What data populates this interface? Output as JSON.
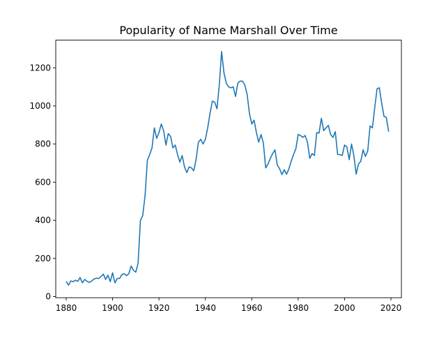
{
  "chart_data": {
    "type": "line",
    "title": "Popularity of Name Marshall Over Time",
    "xlabel": "",
    "ylabel": "",
    "xlim": [
      1875.5,
      2024.5
    ],
    "ylim": [
      -6,
      1345
    ],
    "x_ticks": [
      1880,
      1900,
      1920,
      1940,
      1960,
      1980,
      2000,
      2020
    ],
    "y_ticks": [
      0,
      200,
      400,
      600,
      800,
      1000,
      1200
    ],
    "grid": false,
    "legend": "none",
    "line_color": "#1f77b4",
    "series": [
      {
        "x": [
          1880,
          1881,
          1882,
          1883,
          1884,
          1885,
          1886,
          1887,
          1888,
          1889,
          1890,
          1891,
          1892,
          1893,
          1894,
          1895,
          1896,
          1897,
          1898,
          1899,
          1900,
          1901,
          1902,
          1903,
          1904,
          1905,
          1906,
          1907,
          1908,
          1909,
          1910,
          1911,
          1912,
          1913,
          1914,
          1915,
          1916,
          1917,
          1918,
          1919,
          1920,
          1921,
          1922,
          1923,
          1924,
          1925,
          1926,
          1927,
          1928,
          1929,
          1930,
          1931,
          1932,
          1933,
          1934,
          1935,
          1936,
          1937,
          1938,
          1939,
          1940,
          1941,
          1942,
          1943,
          1944,
          1945,
          1946,
          1947,
          1948,
          1949,
          1950,
          1951,
          1952,
          1953,
          1954,
          1955,
          1956,
          1957,
          1958,
          1959,
          1960,
          1961,
          1962,
          1963,
          1964,
          1965,
          1966,
          1967,
          1968,
          1969,
          1970,
          1971,
          1972,
          1973,
          1974,
          1975,
          1976,
          1977,
          1978,
          1979,
          1980,
          1981,
          1982,
          1983,
          1984,
          1985,
          1986,
          1987,
          1988,
          1989,
          1990,
          1991,
          1992,
          1993,
          1994,
          1995,
          1996,
          1997,
          1998,
          1999,
          2000,
          2001,
          2002,
          2003,
          2004,
          2005,
          2006,
          2007,
          2008,
          2009,
          2010,
          2011,
          2012,
          2013,
          2014,
          2015,
          2016,
          2017,
          2018,
          2019
        ],
        "y": [
          80,
          60,
          82,
          78,
          86,
          80,
          100,
          72,
          90,
          80,
          74,
          82,
          92,
          96,
          95,
          105,
          118,
          90,
          112,
          78,
          125,
          72,
          95,
          95,
          115,
          120,
          110,
          120,
          160,
          138,
          128,
          175,
          400,
          425,
          530,
          715,
          745,
          780,
          885,
          830,
          860,
          905,
          870,
          795,
          855,
          840,
          780,
          795,
          745,
          705,
          740,
          680,
          650,
          680,
          675,
          660,
          720,
          810,
          825,
          800,
          825,
          885,
          960,
          1025,
          1020,
          985,
          1110,
          1285,
          1175,
          1120,
          1100,
          1095,
          1100,
          1050,
          1120,
          1130,
          1130,
          1110,
          1060,
          960,
          905,
          925,
          860,
          810,
          850,
          805,
          675,
          695,
          725,
          750,
          770,
          690,
          670,
          640,
          665,
          642,
          670,
          710,
          745,
          775,
          850,
          845,
          835,
          845,
          810,
          725,
          750,
          740,
          860,
          858,
          935,
          870,
          885,
          898,
          850,
          835,
          865,
          745,
          745,
          740,
          795,
          785,
          718,
          800,
          740,
          642,
          695,
          710,
          770,
          735,
          765,
          895,
          885,
          990,
          1090,
          1095,
          1015,
          945,
          940,
          865
        ]
      }
    ]
  }
}
